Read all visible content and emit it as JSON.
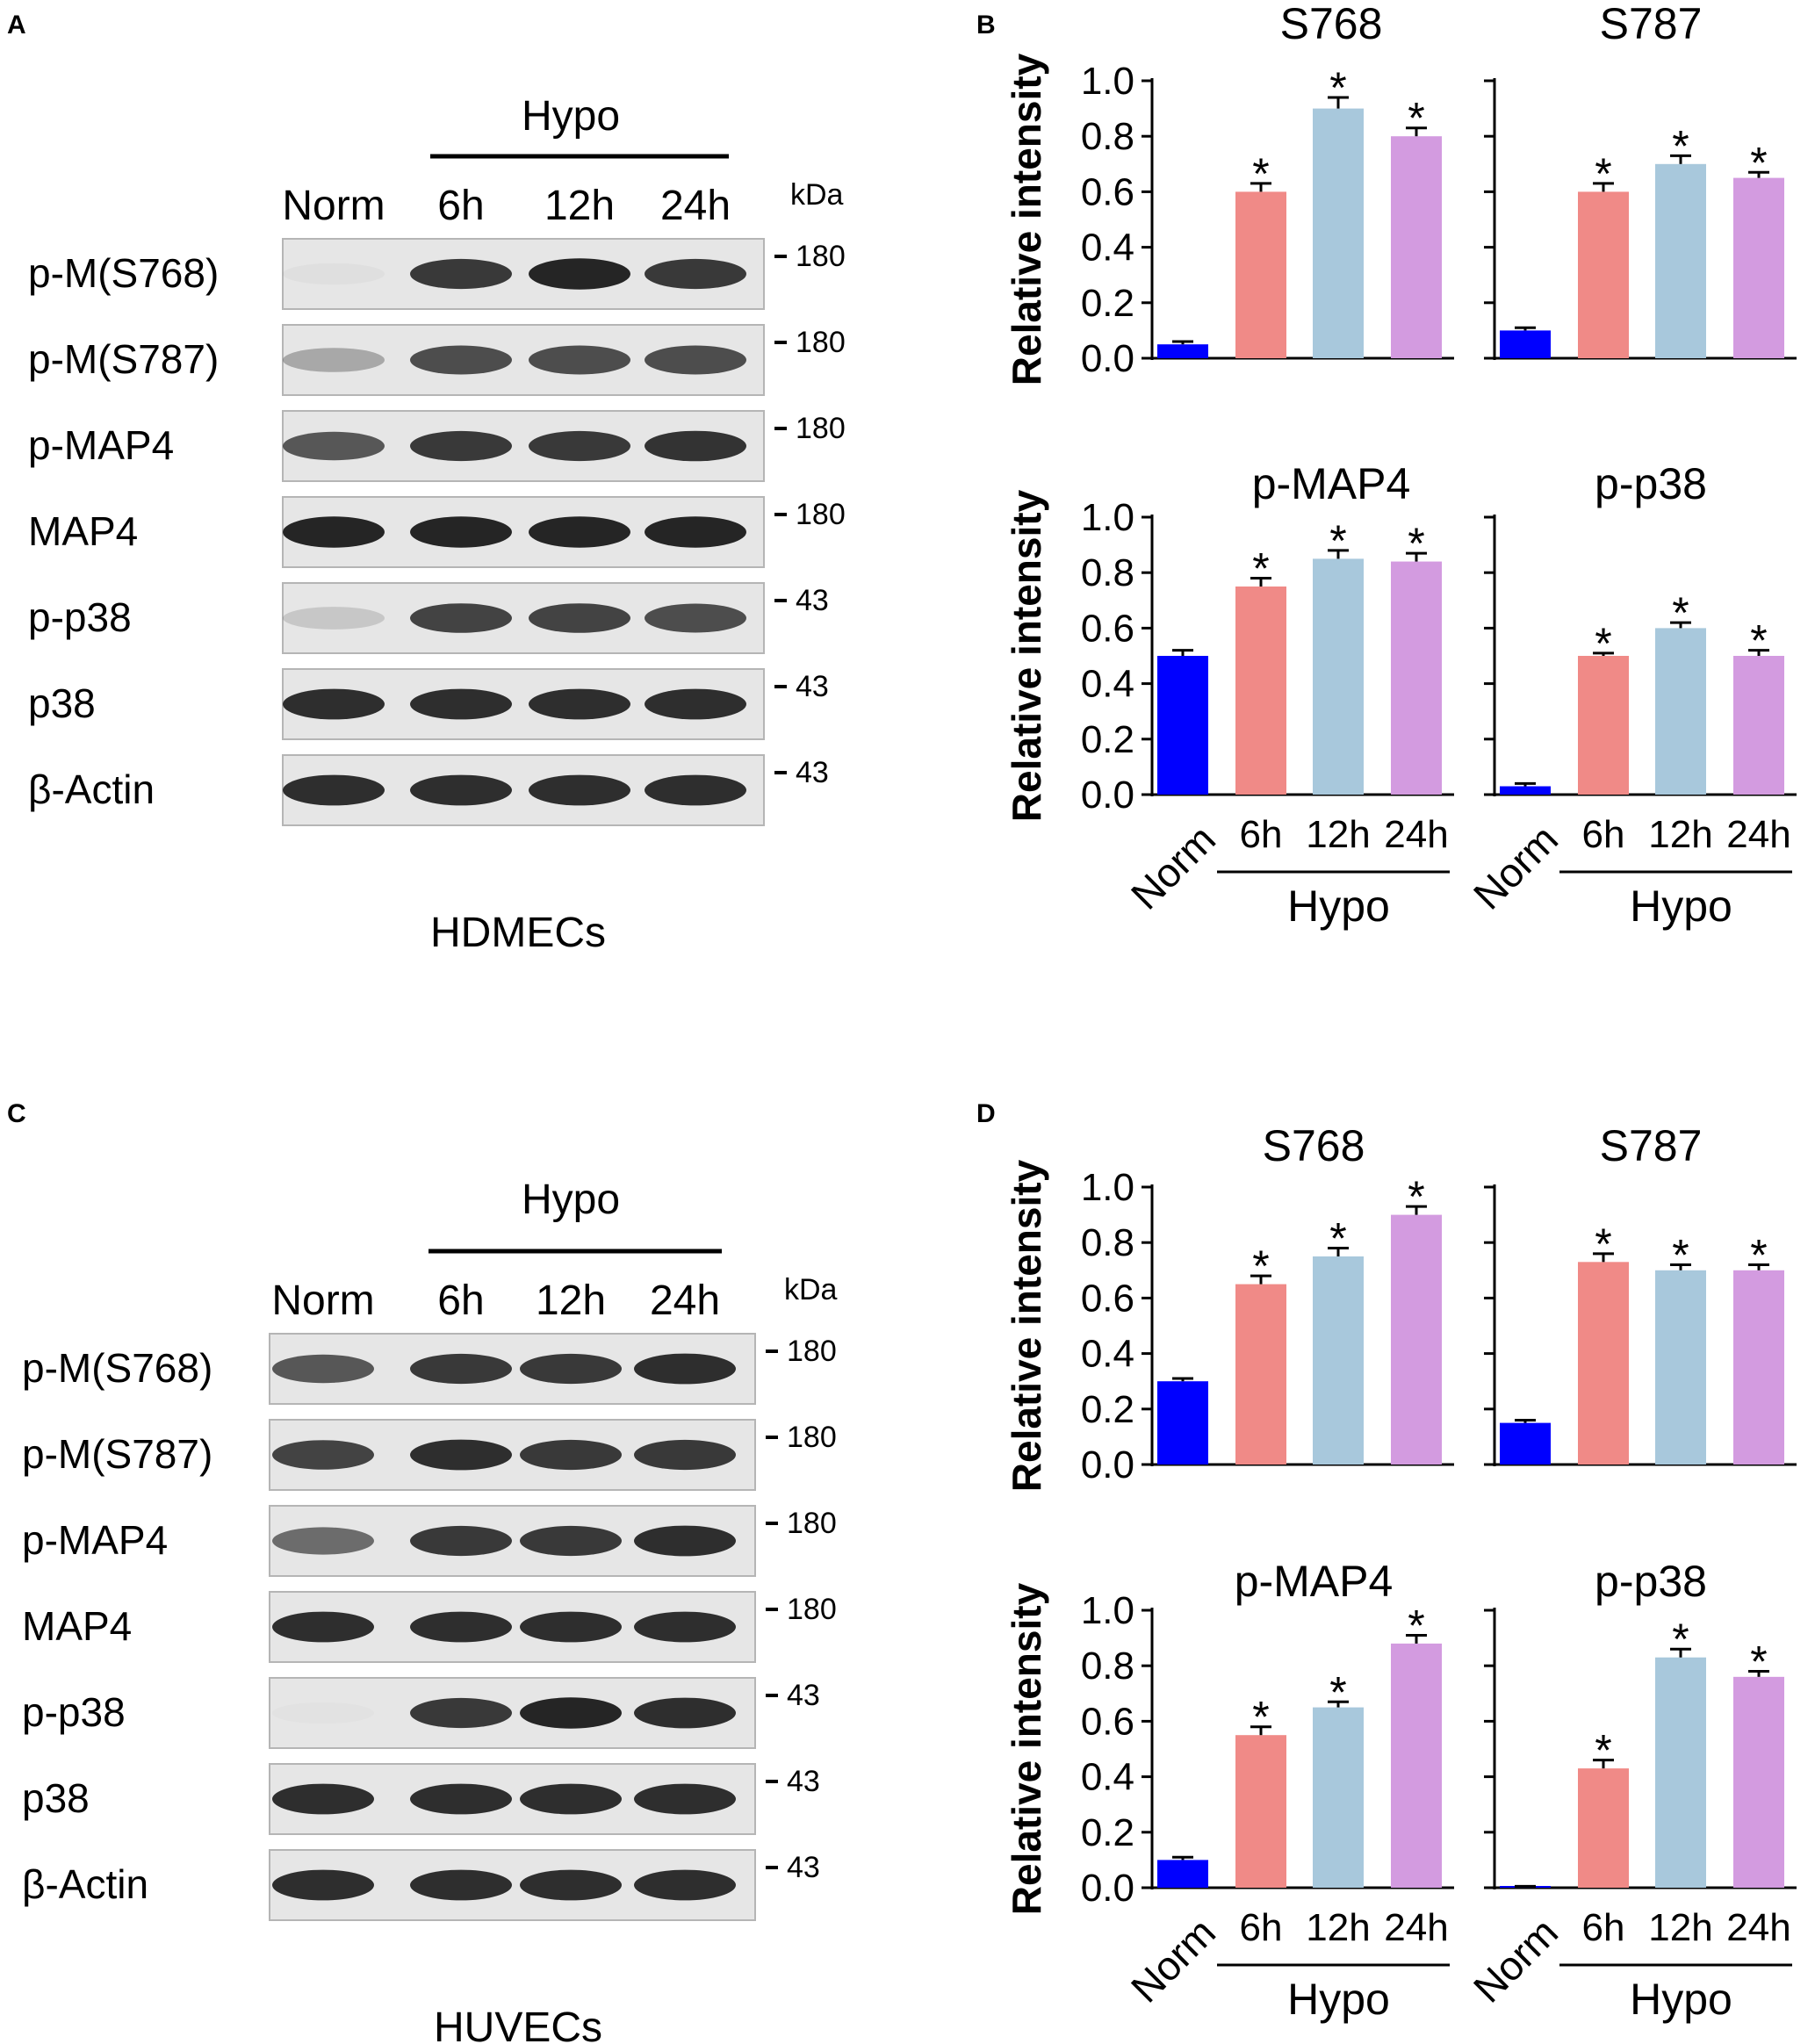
{
  "panels": {
    "A": {
      "letter": "A"
    },
    "B": {
      "letter": "B"
    },
    "C": {
      "letter": "C"
    },
    "D": {
      "letter": "D"
    }
  },
  "blots": [
    {
      "panel": "A",
      "group_label": "Hypo",
      "lanes": [
        "Norm",
        "6h",
        "12h",
        "24h"
      ],
      "unit_label": "kDa",
      "cell_label": "HDMECs",
      "rows": [
        {
          "label": "p-M(S768)",
          "marker": "180",
          "intensity": [
            0.03,
            0.85,
            0.95,
            0.85
          ]
        },
        {
          "label": "p-M(S787)",
          "marker": "180",
          "intensity": [
            0.3,
            0.75,
            0.75,
            0.75
          ]
        },
        {
          "label": "p-MAP4",
          "marker": "180",
          "intensity": [
            0.7,
            0.85,
            0.85,
            0.88
          ]
        },
        {
          "label": "MAP4",
          "marker": "180",
          "intensity": [
            0.95,
            0.95,
            0.95,
            0.95
          ]
        },
        {
          "label": "p-p38",
          "marker": "43",
          "intensity": [
            0.15,
            0.8,
            0.8,
            0.75
          ]
        },
        {
          "label": "p38",
          "marker": "43",
          "intensity": [
            0.9,
            0.9,
            0.9,
            0.9
          ]
        },
        {
          "label": "β-Actin",
          "marker": "43",
          "intensity": [
            0.9,
            0.9,
            0.9,
            0.9
          ]
        }
      ]
    },
    {
      "panel": "C",
      "group_label": "Hypo",
      "lanes": [
        "Norm",
        "6h",
        "12h",
        "24h"
      ],
      "unit_label": "kDa",
      "cell_label": "HUVECs",
      "rows": [
        {
          "label": "p-M(S768)",
          "marker": "180",
          "intensity": [
            0.7,
            0.85,
            0.85,
            0.9
          ]
        },
        {
          "label": "p-M(S787)",
          "marker": "180",
          "intensity": [
            0.8,
            0.9,
            0.85,
            0.85
          ]
        },
        {
          "label": "p-MAP4",
          "marker": "180",
          "intensity": [
            0.6,
            0.85,
            0.85,
            0.9
          ]
        },
        {
          "label": "MAP4",
          "marker": "180",
          "intensity": [
            0.9,
            0.9,
            0.9,
            0.9
          ]
        },
        {
          "label": "p-p38",
          "marker": "43",
          "intensity": [
            0.02,
            0.85,
            0.95,
            0.9
          ]
        },
        {
          "label": "p38",
          "marker": "43",
          "intensity": [
            0.9,
            0.9,
            0.9,
            0.9
          ]
        },
        {
          "label": "β-Actin",
          "marker": "43",
          "intensity": [
            0.9,
            0.9,
            0.9,
            0.9
          ]
        }
      ]
    }
  ],
  "chart_data": [
    {
      "panel": "B",
      "type": "bar",
      "title": "S768",
      "ylabel": "Relative intensity",
      "categories": [
        "Norm",
        "6h",
        "12h",
        "24h"
      ],
      "group_label": "Hypo",
      "values": [
        0.05,
        0.6,
        0.9,
        0.8
      ],
      "errors": [
        0.01,
        0.03,
        0.04,
        0.03
      ],
      "significance": [
        "",
        "*",
        "*",
        "*"
      ],
      "ylim": [
        0,
        1.0
      ],
      "yticks": [
        "0.0",
        "0.2",
        "0.4",
        "0.6",
        "0.8",
        "1.0"
      ]
    },
    {
      "panel": "B",
      "type": "bar",
      "title": "S787",
      "ylabel": "",
      "categories": [
        "Norm",
        "6h",
        "12h",
        "24h"
      ],
      "group_label": "Hypo",
      "values": [
        0.1,
        0.6,
        0.7,
        0.65
      ],
      "errors": [
        0.01,
        0.03,
        0.03,
        0.02
      ],
      "significance": [
        "",
        "*",
        "*",
        "*"
      ],
      "ylim": [
        0,
        1.0
      ],
      "yticks": []
    },
    {
      "panel": "B",
      "type": "bar",
      "title": "p-MAP4",
      "ylabel": "Relative intensity",
      "categories": [
        "Norm",
        "6h",
        "12h",
        "24h"
      ],
      "group_label": "Hypo",
      "values": [
        0.5,
        0.75,
        0.85,
        0.84
      ],
      "errors": [
        0.02,
        0.03,
        0.03,
        0.03
      ],
      "significance": [
        "",
        "*",
        "*",
        "*"
      ],
      "ylim": [
        0,
        1.0
      ],
      "yticks": [
        "0.0",
        "0.2",
        "0.4",
        "0.6",
        "0.8",
        "1.0"
      ]
    },
    {
      "panel": "B",
      "type": "bar",
      "title": "p-p38",
      "ylabel": "",
      "categories": [
        "Norm",
        "6h",
        "12h",
        "24h"
      ],
      "group_label": "Hypo",
      "values": [
        0.03,
        0.5,
        0.6,
        0.5
      ],
      "errors": [
        0.01,
        0.01,
        0.02,
        0.02
      ],
      "significance": [
        "",
        "*",
        "*",
        "*"
      ],
      "ylim": [
        0,
        1.0
      ],
      "yticks": []
    },
    {
      "panel": "D",
      "type": "bar",
      "title": "S768",
      "ylabel": "Relative intensity",
      "categories": [
        "Norm",
        "6h",
        "12h",
        "24h"
      ],
      "group_label": "Hypo",
      "values": [
        0.3,
        0.65,
        0.75,
        0.9
      ],
      "errors": [
        0.01,
        0.03,
        0.03,
        0.03
      ],
      "significance": [
        "",
        "*",
        "*",
        "*"
      ],
      "ylim": [
        0,
        1.0
      ],
      "yticks": [
        "0.0",
        "0.2",
        "0.4",
        "0.6",
        "0.8",
        "1.0"
      ]
    },
    {
      "panel": "D",
      "type": "bar",
      "title": "S787",
      "ylabel": "",
      "categories": [
        "Norm",
        "6h",
        "12h",
        "24h"
      ],
      "group_label": "Hypo",
      "values": [
        0.15,
        0.73,
        0.7,
        0.7
      ],
      "errors": [
        0.01,
        0.03,
        0.02,
        0.02
      ],
      "significance": [
        "",
        "*",
        "*",
        "*"
      ],
      "ylim": [
        0,
        1.0
      ],
      "yticks": []
    },
    {
      "panel": "D",
      "type": "bar",
      "title": "p-MAP4",
      "ylabel": "Relative intensity",
      "categories": [
        "Norm",
        "6h",
        "12h",
        "24h"
      ],
      "group_label": "Hypo",
      "values": [
        0.1,
        0.55,
        0.65,
        0.88
      ],
      "errors": [
        0.01,
        0.03,
        0.02,
        0.03
      ],
      "significance": [
        "",
        "*",
        "*",
        "*"
      ],
      "ylim": [
        0,
        1.0
      ],
      "yticks": [
        "0.0",
        "0.2",
        "0.4",
        "0.6",
        "0.8",
        "1.0"
      ]
    },
    {
      "panel": "D",
      "type": "bar",
      "title": "p-p38",
      "ylabel": "",
      "categories": [
        "Norm",
        "6h",
        "12h",
        "24h"
      ],
      "group_label": "Hypo",
      "values": [
        0.0,
        0.43,
        0.83,
        0.76
      ],
      "errors": [
        0.005,
        0.03,
        0.03,
        0.02
      ],
      "significance": [
        "",
        "*",
        "*",
        "*"
      ],
      "ylim": [
        0,
        1.0
      ],
      "yticks": []
    }
  ],
  "colors": {
    "Norm": "#0000ff",
    "6h": "#f08a87",
    "12h": "#a8c8dc",
    "24h": "#d39be0",
    "axis": "#000000",
    "blot_background": "#e6e6e6",
    "band": "#1a1a1a"
  }
}
